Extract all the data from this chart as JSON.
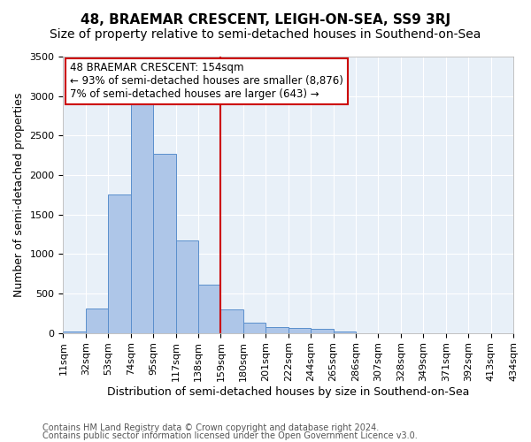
{
  "title": "48, BRAEMAR CRESCENT, LEIGH-ON-SEA, SS9 3RJ",
  "subtitle": "Size of property relative to semi-detached houses in Southend-on-Sea",
  "xlabel": "Distribution of semi-detached houses by size in Southend-on-Sea",
  "ylabel": "Number of semi-detached properties",
  "footnote1": "Contains HM Land Registry data © Crown copyright and database right 2024.",
  "footnote2": "Contains public sector information licensed under the Open Government Licence v3.0.",
  "bin_labels": [
    "11sqm",
    "32sqm",
    "53sqm",
    "74sqm",
    "95sqm",
    "117sqm",
    "138sqm",
    "159sqm",
    "180sqm",
    "201sqm",
    "222sqm",
    "244sqm",
    "265sqm",
    "286sqm",
    "307sqm",
    "328sqm",
    "349sqm",
    "371sqm",
    "392sqm",
    "413sqm",
    "434sqm"
  ],
  "bar_values": [
    20,
    310,
    1750,
    2920,
    2270,
    1170,
    610,
    300,
    130,
    75,
    60,
    50,
    20,
    0,
    0,
    0,
    0,
    0,
    0,
    0
  ],
  "bar_color": "#aec6e8",
  "bar_edge_color": "#5a8fcc",
  "vline_x": 7,
  "vline_color": "#cc0000",
  "annotation_title": "48 BRAEMAR CRESCENT: 154sqm",
  "annotation_line1": "← 93% of semi-detached houses are smaller (8,876)",
  "annotation_line2": "7% of semi-detached houses are larger (643) →",
  "annotation_box_color": "#cc0000",
  "ylim": [
    0,
    3500
  ],
  "yticks": [
    0,
    500,
    1000,
    1500,
    2000,
    2500,
    3000,
    3500
  ],
  "background_color": "#e8f0f8",
  "title_fontsize": 11,
  "subtitle_fontsize": 10,
  "axis_label_fontsize": 9,
  "tick_fontsize": 8,
  "annotation_fontsize": 8.5,
  "footnote_fontsize": 7
}
